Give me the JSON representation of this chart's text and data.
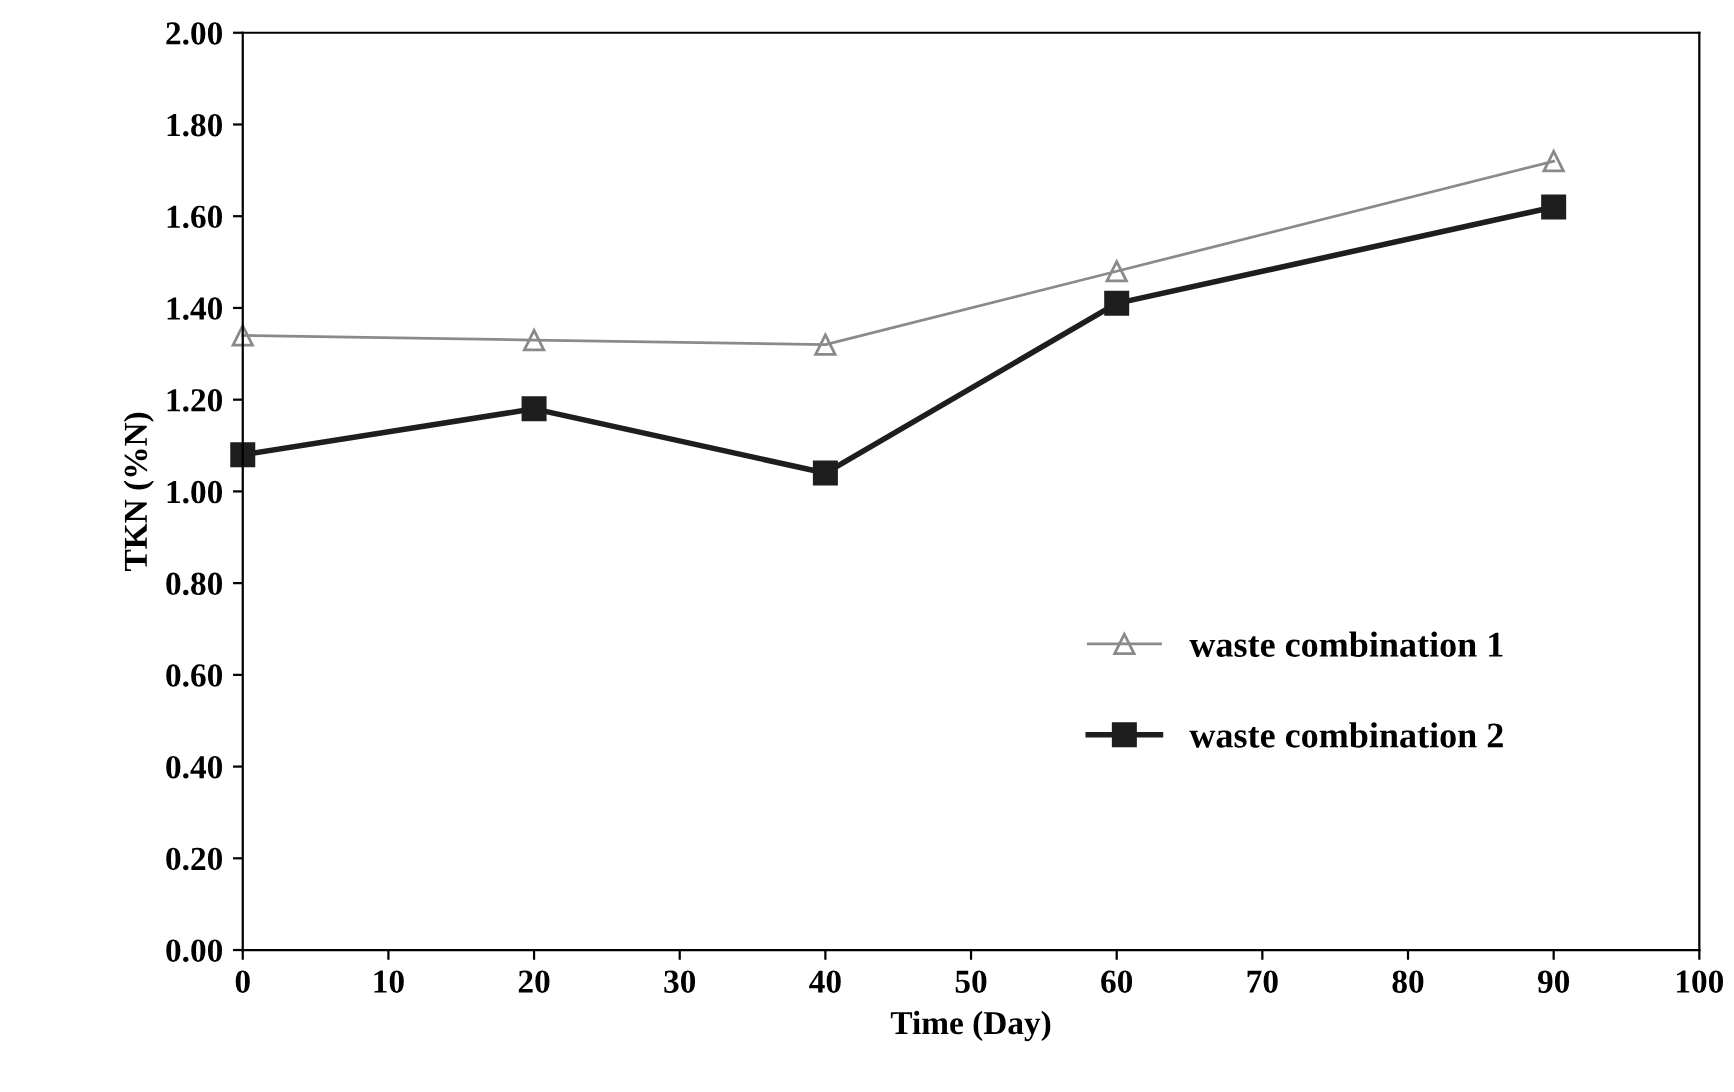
{
  "chart_data": {
    "type": "line",
    "xlabel": "Time (Day)",
    "ylabel": "TKN (%N)",
    "x": [
      0,
      20,
      40,
      60,
      90
    ],
    "series": [
      {
        "name": "waste combination 1",
        "color": "#8a8a8a",
        "marker": "triangle",
        "values": [
          1.34,
          1.33,
          1.32,
          1.48,
          1.72
        ]
      },
      {
        "name": "waste combination 2",
        "color": "#1e1e1e",
        "marker": "square",
        "values": [
          1.08,
          1.18,
          1.04,
          1.41,
          1.62
        ]
      }
    ],
    "xlim": [
      0,
      100
    ],
    "xticks": [
      0,
      10,
      20,
      30,
      40,
      50,
      60,
      70,
      80,
      90,
      100
    ],
    "ylim": [
      0,
      2.0
    ],
    "yticks": [
      {
        "value": 0,
        "label": "0.00"
      },
      {
        "value": 0.2,
        "label": "0.20"
      },
      {
        "value": 0.4,
        "label": "0.40"
      },
      {
        "value": 0.6,
        "label": "0.60"
      },
      {
        "value": 0.8,
        "label": "0.80"
      },
      {
        "value": 1.0,
        "label": "1.00"
      },
      {
        "value": 1.2,
        "label": "1.20"
      },
      {
        "value": 1.4,
        "label": "1.40"
      },
      {
        "value": 1.6,
        "label": "1.60"
      },
      {
        "value": 1.8,
        "label": "1.80"
      },
      {
        "value": 2.0,
        "label": "2.00"
      }
    ],
    "grid": false,
    "legend": "lower right",
    "line_style": "solid"
  }
}
